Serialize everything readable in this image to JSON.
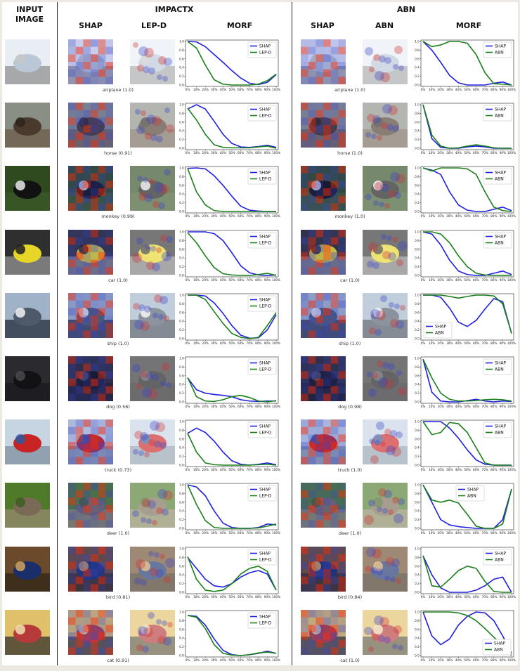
{
  "headers": {
    "input": "INPUT IMAGE",
    "impactx": "IMPACTX",
    "abn": "ABN",
    "impactx_cols": [
      "SHAP",
      "LEP-D",
      "MORF"
    ],
    "abn_cols": [
      "SHAP",
      "ABN",
      "MORF"
    ]
  },
  "colors": {
    "shap": "#1f1fe0",
    "green": "#1a7f1a",
    "heat_pos": "#d03030",
    "heat_neg": "#3a46c8"
  },
  "x_ticks": [
    "0%",
    "10%",
    "20%",
    "30%",
    "40%",
    "50%",
    "60%",
    "70%",
    "80%",
    "90%",
    "100%"
  ],
  "y_ticks": [
    "0.0",
    "0.2",
    "0.4",
    "0.6",
    "0.8",
    "1.0"
  ],
  "rows": [
    {
      "image_icon": "airplane-photo",
      "impactx_label": "airplane (1.0)",
      "abn_label": "airplane (1.0)",
      "impactx_chart": {
        "legend": [
          "SHAP",
          "LEP-D"
        ],
        "legend_pos": "top-right",
        "series": [
          {
            "name": "SHAP",
            "color": "#1f1fe0",
            "values": [
              1.0,
              0.99,
              0.88,
              0.7,
              0.52,
              0.33,
              0.16,
              0.04,
              0.01,
              0.06,
              0.24
            ]
          },
          {
            "name": "LEP-D",
            "color": "#1a7f1a",
            "values": [
              1.0,
              0.85,
              0.46,
              0.12,
              0.02,
              0.0,
              0.0,
              0.0,
              0.02,
              0.1,
              0.25
            ]
          }
        ]
      },
      "abn_chart": {
        "legend": [
          "SHAP",
          "ABN"
        ],
        "legend_pos": "top-right",
        "series": [
          {
            "name": "SHAP",
            "color": "#1f1fe0",
            "values": [
              1.0,
              0.8,
              0.52,
              0.22,
              0.05,
              0.0,
              0.0,
              0.0,
              0.04,
              0.07,
              0.0
            ]
          },
          {
            "name": "ABN",
            "color": "#1a7f1a",
            "values": [
              1.0,
              0.88,
              0.92,
              1.0,
              1.0,
              0.96,
              0.7,
              0.28,
              0.03,
              0.02,
              0.0
            ]
          }
        ]
      }
    },
    {
      "image_icon": "horse-photo",
      "impactx_label": "horse (0.91)",
      "abn_label": "horse (1.0)",
      "impactx_chart": {
        "legend": [
          "SHAP",
          "LEP-D"
        ],
        "legend_pos": "top-right",
        "series": [
          {
            "name": "SHAP",
            "color": "#1f1fe0",
            "values": [
              0.9,
              1.0,
              0.9,
              0.62,
              0.32,
              0.11,
              0.03,
              0.02,
              0.04,
              0.07,
              0.02
            ]
          },
          {
            "name": "LEP-D",
            "color": "#1a7f1a",
            "values": [
              0.92,
              0.65,
              0.32,
              0.08,
              0.02,
              0.01,
              0.01,
              0.01,
              0.03,
              0.05,
              0.0
            ]
          }
        ]
      },
      "abn_chart": {
        "legend": [
          "SHAP",
          "ABN"
        ],
        "legend_pos": "top-right",
        "series": [
          {
            "name": "SHAP",
            "color": "#1f1fe0",
            "values": [
              1.0,
              0.22,
              0.02,
              0.0,
              0.0,
              0.03,
              0.05,
              0.03,
              0.0,
              0.0,
              0.0
            ]
          },
          {
            "name": "ABN",
            "color": "#1a7f1a",
            "values": [
              1.0,
              0.3,
              0.05,
              0.0,
              0.01,
              0.05,
              0.08,
              0.05,
              0.01,
              0.0,
              0.0
            ]
          }
        ]
      }
    },
    {
      "image_icon": "monkey-photo",
      "impactx_label": "monkey (0.99)",
      "abn_label": "monkey (1.0)",
      "impactx_chart": {
        "legend": [
          "SHAP",
          "LEP-D"
        ],
        "legend_pos": "top-right",
        "series": [
          {
            "name": "SHAP",
            "color": "#1f1fe0",
            "values": [
              0.99,
              1.0,
              0.98,
              0.82,
              0.6,
              0.35,
              0.12,
              0.03,
              0.01,
              0.0,
              0.0
            ]
          },
          {
            "name": "LEP-D",
            "color": "#1a7f1a",
            "values": [
              0.99,
              0.45,
              0.15,
              0.02,
              0.0,
              0.0,
              0.0,
              0.0,
              0.0,
              0.0,
              0.0
            ]
          }
        ]
      },
      "abn_chart": {
        "legend": [
          "SHAP",
          "ABN"
        ],
        "legend_pos": "top-right",
        "series": [
          {
            "name": "SHAP",
            "color": "#1f1fe0",
            "values": [
              1.0,
              0.95,
              0.85,
              0.45,
              0.15,
              0.03,
              0.0,
              0.0,
              0.05,
              0.1,
              0.02
            ]
          },
          {
            "name": "ABN",
            "color": "#1a7f1a",
            "values": [
              1.0,
              0.93,
              1.0,
              1.0,
              1.0,
              0.98,
              0.85,
              0.45,
              0.1,
              0.02,
              0.0
            ]
          }
        ]
      }
    },
    {
      "image_icon": "car-photo",
      "impactx_label": "car (1.0)",
      "abn_label": "car (1.0)",
      "impactx_chart": {
        "legend": [
          "SHAP",
          "LEP-D"
        ],
        "legend_pos": "top-right",
        "series": [
          {
            "name": "SHAP",
            "color": "#1f1fe0",
            "values": [
              1.0,
              1.0,
              1.0,
              0.96,
              0.8,
              0.52,
              0.22,
              0.06,
              0.01,
              0.0,
              0.01
            ]
          },
          {
            "name": "LEP-D",
            "color": "#1a7f1a",
            "values": [
              0.98,
              0.75,
              0.45,
              0.18,
              0.04,
              0.01,
              0.0,
              0.0,
              0.02,
              0.05,
              0.0
            ]
          }
        ]
      },
      "abn_chart": {
        "legend": [
          "SHAP",
          "ABN"
        ],
        "legend_pos": "top-right",
        "series": [
          {
            "name": "SHAP",
            "color": "#1f1fe0",
            "values": [
              1.0,
              0.95,
              0.7,
              0.35,
              0.1,
              0.02,
              0.0,
              0.0,
              0.05,
              0.1,
              0.02
            ]
          },
          {
            "name": "ABN",
            "color": "#1a7f1a",
            "values": [
              1.0,
              1.0,
              0.95,
              0.75,
              0.45,
              0.2,
              0.05,
              0.01,
              0.0,
              0.0,
              0.0
            ]
          }
        ]
      }
    },
    {
      "image_icon": "ship-photo",
      "impactx_label": "ship (1.0)",
      "abn_label": "ship (1.0)",
      "impactx_chart": {
        "legend": [
          "SHAP",
          "LEP-D"
        ],
        "legend_pos": "top-right",
        "series": [
          {
            "name": "SHAP",
            "color": "#1f1fe0",
            "values": [
              1.0,
              1.0,
              0.98,
              0.82,
              0.58,
              0.3,
              0.08,
              0.01,
              0.02,
              0.2,
              0.55
            ]
          },
          {
            "name": "LEP-D",
            "color": "#1a7f1a",
            "values": [
              1.0,
              1.0,
              0.9,
              0.62,
              0.35,
              0.12,
              0.03,
              0.0,
              0.03,
              0.3,
              0.6
            ]
          }
        ]
      },
      "abn_chart": {
        "legend": [
          "SHAP",
          "ABN"
        ],
        "legend_pos": "bottom-left",
        "series": [
          {
            "name": "SHAP",
            "color": "#1f1fe0",
            "values": [
              1.0,
              1.0,
              0.95,
              0.7,
              0.38,
              0.28,
              0.42,
              0.68,
              0.92,
              0.85,
              0.12
            ]
          },
          {
            "name": "ABN",
            "color": "#1a7f1a",
            "values": [
              1.0,
              1.0,
              1.0,
              0.97,
              0.93,
              0.97,
              1.0,
              1.0,
              0.98,
              0.8,
              0.12
            ]
          }
        ]
      }
    },
    {
      "image_icon": "dog-photo",
      "impactx_label": "dog (0.56)",
      "abn_label": "dog (0.98)",
      "impactx_chart": {
        "legend": [
          "SHAP",
          "LEP-D"
        ],
        "legend_pos": "top-right",
        "series": [
          {
            "name": "SHAP",
            "color": "#1f1fe0",
            "values": [
              0.55,
              0.28,
              0.2,
              0.17,
              0.15,
              0.12,
              0.05,
              0.02,
              0.01,
              0.02,
              0.02
            ]
          },
          {
            "name": "LEP-D",
            "color": "#1a7f1a",
            "values": [
              0.56,
              0.12,
              0.02,
              0.01,
              0.05,
              0.12,
              0.15,
              0.1,
              0.02,
              0.0,
              0.03
            ]
          }
        ]
      },
      "abn_chart": {
        "legend": [
          "SHAP",
          "ABN"
        ],
        "legend_pos": "top-right",
        "series": [
          {
            "name": "SHAP",
            "color": "#1f1fe0",
            "values": [
              0.98,
              0.22,
              0.02,
              0.0,
              0.0,
              0.03,
              0.06,
              0.02,
              0.0,
              0.02,
              0.01
            ]
          },
          {
            "name": "ABN",
            "color": "#1a7f1a",
            "values": [
              0.98,
              0.55,
              0.2,
              0.06,
              0.02,
              0.02,
              0.03,
              0.05,
              0.06,
              0.05,
              0.02
            ]
          }
        ]
      }
    },
    {
      "image_icon": "truck-photo",
      "impactx_label": "truck (0.73)",
      "abn_label": "truck (1.0)",
      "impactx_chart": {
        "legend": [
          "SHAP",
          "LEP-D"
        ],
        "legend_pos": "top-right",
        "series": [
          {
            "name": "SHAP",
            "color": "#1f1fe0",
            "values": [
              0.73,
              0.85,
              0.75,
              0.55,
              0.3,
              0.1,
              0.02,
              0.0,
              0.02,
              0.05,
              0.01
            ]
          },
          {
            "name": "LEP-D",
            "color": "#1a7f1a",
            "values": [
              0.73,
              0.3,
              0.05,
              0.01,
              0.0,
              0.0,
              0.0,
              0.0,
              0.01,
              0.02,
              0.0
            ]
          }
        ]
      },
      "abn_chart": {
        "legend": [
          "SHAP",
          "ABN"
        ],
        "legend_pos": "top-right",
        "series": [
          {
            "name": "SHAP",
            "color": "#1f1fe0",
            "values": [
              1.0,
              1.0,
              1.0,
              0.85,
              0.62,
              0.35,
              0.12,
              0.02,
              0.0,
              0.0,
              0.0
            ]
          },
          {
            "name": "ABN",
            "color": "#1a7f1a",
            "values": [
              1.0,
              0.7,
              0.75,
              0.98,
              0.95,
              0.75,
              0.4,
              0.05,
              0.0,
              0.0,
              0.0
            ]
          }
        ]
      }
    },
    {
      "image_icon": "deer-photo",
      "impactx_label": "deer (1.0)",
      "abn_label": "deer (1.0)",
      "impactx_chart": {
        "legend": [
          "SHAP",
          "LEP-D"
        ],
        "legend_pos": "top-right",
        "series": [
          {
            "name": "SHAP",
            "color": "#1f1fe0",
            "values": [
              1.0,
              0.95,
              0.75,
              0.4,
              0.12,
              0.02,
              0.0,
              0.0,
              0.02,
              0.1,
              0.08
            ]
          },
          {
            "name": "LEP-D",
            "color": "#1a7f1a",
            "values": [
              1.0,
              0.55,
              0.18,
              0.02,
              0.0,
              0.0,
              0.0,
              0.0,
              0.01,
              0.05,
              0.1
            ]
          }
        ]
      },
      "abn_chart": {
        "legend": [
          "SHAP",
          "ABN"
        ],
        "legend_pos": "top-center",
        "series": [
          {
            "name": "SHAP",
            "color": "#1f1fe0",
            "values": [
              1.0,
              0.6,
              0.2,
              0.08,
              0.04,
              0.02,
              0.0,
              0.0,
              0.0,
              0.2,
              0.9
            ]
          },
          {
            "name": "ABN",
            "color": "#1a7f1a",
            "values": [
              1.0,
              0.65,
              0.6,
              0.65,
              0.58,
              0.32,
              0.05,
              0.0,
              0.0,
              0.1,
              0.9
            ]
          }
        ]
      }
    },
    {
      "image_icon": "bird-photo",
      "impactx_label": "bird (0.81)",
      "abn_label": "bird (0.84)",
      "impactx_chart": {
        "legend": [
          "SHAP",
          "LEP-D"
        ],
        "legend_pos": "top-right",
        "series": [
          {
            "name": "SHAP",
            "color": "#1f1fe0",
            "values": [
              0.8,
              0.55,
              0.3,
              0.15,
              0.12,
              0.2,
              0.35,
              0.45,
              0.5,
              0.42,
              0.05
            ]
          },
          {
            "name": "LEP-D",
            "color": "#1a7f1a",
            "values": [
              0.82,
              0.3,
              0.05,
              0.02,
              0.05,
              0.2,
              0.42,
              0.55,
              0.6,
              0.48,
              0.05
            ]
          }
        ]
      },
      "abn_chart": {
        "legend": [
          "SHAP",
          "ABN"
        ],
        "legend_pos": "top-right",
        "series": [
          {
            "name": "SHAP",
            "color": "#1f1fe0",
            "values": [
              0.84,
              0.4,
              0.1,
              0.0,
              0.0,
              0.0,
              0.05,
              0.15,
              0.3,
              0.35,
              0.0
            ]
          },
          {
            "name": "ABN",
            "color": "#1a7f1a",
            "values": [
              0.84,
              0.15,
              0.12,
              0.3,
              0.5,
              0.6,
              0.55,
              0.25,
              0.02,
              0.0,
              0.0
            ]
          }
        ]
      }
    },
    {
      "image_icon": "cat-photo",
      "impactx_label": "cat (0.91)",
      "abn_label": "cat (1.0)",
      "impactx_chart": {
        "legend": [
          "SHAP",
          "LEP-D"
        ],
        "legend_pos": "top-right",
        "series": [
          {
            "name": "SHAP",
            "color": "#1f1fe0",
            "values": [
              0.92,
              0.9,
              0.7,
              0.38,
              0.12,
              0.02,
              0.0,
              0.02,
              0.05,
              0.1,
              0.05
            ]
          },
          {
            "name": "LEP-D",
            "color": "#1a7f1a",
            "values": [
              0.92,
              0.88,
              0.62,
              0.25,
              0.05,
              0.01,
              0.0,
              0.02,
              0.06,
              0.08,
              0.05
            ]
          }
        ]
      },
      "abn_chart": {
        "legend": [
          "SHAP",
          "ABN"
        ],
        "legend_pos": "bottom-right",
        "series": [
          {
            "name": "SHAP",
            "color": "#1f1fe0",
            "values": [
              1.0,
              0.45,
              0.25,
              0.38,
              0.7,
              0.9,
              1.0,
              0.98,
              0.8,
              0.45,
              0.05
            ]
          },
          {
            "name": "ABN",
            "color": "#1a7f1a",
            "values": [
              1.0,
              1.0,
              1.0,
              1.0,
              0.98,
              0.92,
              0.8,
              0.62,
              0.42,
              0.22,
              0.0
            ]
          }
        ]
      }
    }
  ]
}
